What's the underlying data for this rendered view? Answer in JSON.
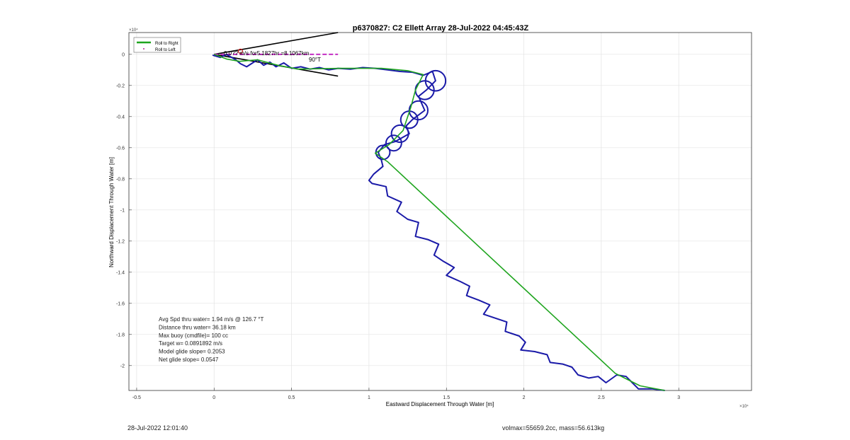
{
  "chart_data": {
    "type": "line",
    "title": "p6370827: C2 Ellett Array 28-Jul-2022 04:45:43Z",
    "xlabel": "Eastward Displacement Through Water [m]",
    "ylabel": "Northward Displacement Through Water [m]",
    "x_exponent": "×10⁴",
    "y_exponent": "×10⁴",
    "xlim": [
      -0.55,
      3.47
    ],
    "ylim": [
      -2.16,
      0.14
    ],
    "x_unit_scale": 10000,
    "y_unit_scale": 10000,
    "xticks": [
      -0.5,
      0,
      0.5,
      1,
      1.5,
      2,
      2.5,
      3
    ],
    "xtick_labels": [
      "-0.5",
      "0",
      "0.5",
      "1",
      "1.5",
      "2",
      "2.5",
      "3"
    ],
    "yticks": [
      0,
      -0.2,
      -0.4,
      -0.6,
      -0.8,
      -1,
      -1.2,
      -1.4,
      -1.6,
      -1.8,
      -2
    ],
    "ytick_labels": [
      "0",
      "-0.2",
      "-0.4",
      "-0.6",
      "-0.8",
      "-1",
      "-1.2",
      "-1.4",
      "-1.6",
      "-1.8",
      "-2"
    ],
    "grid": true,
    "legend_position": "top-left",
    "legend": [
      {
        "label": "Roll to Right",
        "color": "#1fa51f",
        "style": "line"
      },
      {
        "label": "Roll to Left",
        "color": "#c0209a",
        "style": "dot"
      }
    ],
    "series": [
      {
        "name": "Roll to Right",
        "color": "#1fa51f",
        "points": [
          [
            0,
            0
          ],
          [
            800,
            -300
          ],
          [
            1650,
            -450
          ],
          [
            2800,
            -350
          ],
          [
            4100,
            -700
          ],
          [
            5400,
            -950
          ],
          [
            8200,
            -900
          ],
          [
            10800,
            -900
          ],
          [
            12500,
            -1050
          ],
          [
            13500,
            -1300
          ],
          [
            13000,
            -2300
          ],
          [
            12700,
            -3400
          ],
          [
            12200,
            -4900
          ],
          [
            11300,
            -5800
          ],
          [
            10400,
            -6350
          ],
          [
            11200,
            -6900
          ],
          [
            25900,
            -20500
          ],
          [
            27500,
            -21300
          ],
          [
            29100,
            -21600
          ]
        ]
      },
      {
        "name": "track",
        "color": "#1a1aa8",
        "points": [
          [
            -100,
            -50
          ],
          [
            400,
            -200
          ],
          [
            800,
            -10
          ],
          [
            1400,
            -350
          ],
          [
            1700,
            -600
          ],
          [
            2100,
            -800
          ],
          [
            2800,
            -350
          ],
          [
            3200,
            -700
          ],
          [
            3600,
            -500
          ],
          [
            4000,
            -800
          ],
          [
            4500,
            -550
          ],
          [
            5000,
            -900
          ],
          [
            5600,
            -800
          ],
          [
            6200,
            -950
          ],
          [
            6800,
            -850
          ],
          [
            7400,
            -1000
          ],
          [
            8000,
            -900
          ],
          [
            8800,
            -950
          ],
          [
            9600,
            -850
          ],
          [
            10400,
            -900
          ],
          [
            11200,
            -1000
          ],
          [
            12000,
            -1100
          ],
          [
            12800,
            -1150
          ],
          [
            13500,
            -1350
          ],
          [
            14100,
            -1100
          ],
          [
            14300,
            -1700
          ],
          [
            13700,
            -2300
          ],
          [
            13200,
            -2700
          ],
          [
            13600,
            -3600
          ],
          [
            12800,
            -4200
          ],
          [
            12400,
            -4600
          ],
          [
            12600,
            -5100
          ],
          [
            11700,
            -5600
          ],
          [
            11000,
            -5800
          ],
          [
            10600,
            -6300
          ],
          [
            10800,
            -6800
          ],
          [
            10900,
            -7200
          ],
          [
            10300,
            -7700
          ],
          [
            10000,
            -8100
          ],
          [
            10200,
            -8300
          ],
          [
            11100,
            -8500
          ],
          [
            11200,
            -9100
          ],
          [
            12100,
            -9500
          ],
          [
            11800,
            -10100
          ],
          [
            12500,
            -10600
          ],
          [
            13200,
            -10800
          ],
          [
            13000,
            -11700
          ],
          [
            13800,
            -11900
          ],
          [
            14500,
            -12200
          ],
          [
            14200,
            -12900
          ],
          [
            14800,
            -13300
          ],
          [
            15500,
            -13700
          ],
          [
            15000,
            -14200
          ],
          [
            15900,
            -14600
          ],
          [
            16500,
            -14900
          ],
          [
            16300,
            -15500
          ],
          [
            17100,
            -15800
          ],
          [
            17800,
            -16100
          ],
          [
            17400,
            -16700
          ],
          [
            18300,
            -17000
          ],
          [
            18900,
            -17200
          ],
          [
            18800,
            -17800
          ],
          [
            19700,
            -18100
          ],
          [
            20100,
            -18500
          ],
          [
            19800,
            -19000
          ],
          [
            20700,
            -19100
          ],
          [
            21500,
            -19300
          ],
          [
            21700,
            -19800
          ],
          [
            22500,
            -19900
          ],
          [
            23100,
            -20100
          ],
          [
            23500,
            -20600
          ],
          [
            24200,
            -20800
          ],
          [
            24800,
            -20700
          ],
          [
            25300,
            -21100
          ],
          [
            26000,
            -20600
          ],
          [
            26600,
            -20700
          ],
          [
            27000,
            -21100
          ],
          [
            27400,
            -21500
          ],
          [
            27800,
            -21500
          ],
          [
            28300,
            -21500
          ],
          [
            29100,
            -21600
          ]
        ]
      }
    ],
    "loops": [
      {
        "center": [
          14300,
          -1700
        ],
        "radius": 650
      },
      {
        "center": [
          13600,
          -2300
        ],
        "radius": 600
      },
      {
        "center": [
          13200,
          -3600
        ],
        "radius": 600
      },
      {
        "center": [
          12600,
          -4200
        ],
        "radius": 550
      },
      {
        "center": [
          12000,
          -5100
        ],
        "radius": 550
      },
      {
        "center": [
          11600,
          -5700
        ],
        "radius": 500
      },
      {
        "center": [
          10900,
          -6300
        ],
        "radius": 450
      }
    ],
    "current_vector": {
      "text": "0.0?? m/s for5.1827hr =8.1067km",
      "direction_label": "90°T",
      "lines_color": "#000000",
      "dash_color": "#c020c0",
      "segments": [
        [
          [
            0,
            0
          ],
          [
            8000,
            1400
          ]
        ],
        [
          [
            0,
            0
          ],
          [
            8000,
            -1400
          ]
        ],
        [
          [
            0,
            0
          ],
          [
            8000,
            0
          ]
        ]
      ]
    },
    "annotations": [
      "Avg Spd thru water=  1.94 m/s @ 126.7 °T",
      "Distance thru water= 36.18 km",
      "Max buoy (cmdfile)= 100 cc",
      "Target w= 0.0891892 m/s",
      "Model glide slope= 0.2053",
      "Net glide slope= 0.0547"
    ]
  },
  "footer": {
    "timestamp": "28-Jul-2022 12:01:40",
    "volume_mass": "volmax=55659.2cc, mass=56.613kg"
  }
}
